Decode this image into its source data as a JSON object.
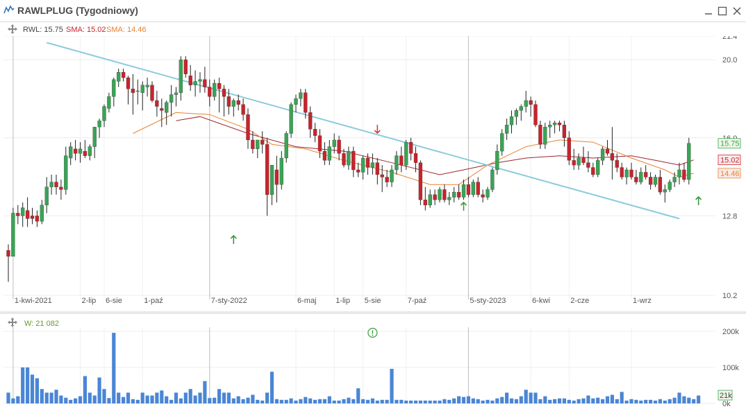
{
  "window": {
    "title": "RAWLPLUG (Tygodniowy)",
    "icons": [
      "chart-line-icon",
      "minimize-icon",
      "maximize-icon",
      "close-icon",
      "move-icon",
      "info-circle-icon",
      "arrow-up-icon",
      "arrow-down-icon"
    ]
  },
  "legend": {
    "rwl": "RWL: 15.75",
    "sma1": "SMA: 15.02",
    "sma2": "SMA: 14.46",
    "vol": "W: 21 082"
  },
  "colors": {
    "up": "#3aa455",
    "down": "#c8242c",
    "sma_long": "#9c2430",
    "sma_short": "#e8812e",
    "trendline": "#8ccbdc",
    "volume": "#4a86d4",
    "arrow_up": "#3a9a3a",
    "arrow_down": "#d04545"
  },
  "chart_data": [
    {
      "type": "candlestick",
      "title": "RAWLPLUG (Tygodniowy)",
      "y_ticks": [
        "21.4",
        "20.0",
        "16.0",
        "12.8",
        "10.2"
      ],
      "y_tick_values": [
        21.4,
        20.0,
        16.0,
        12.8,
        10.2
      ],
      "ylim": [
        10.2,
        21.4
      ],
      "y_scale": "log",
      "x_labels": [
        "1-kwi-2021",
        "2-lip",
        "6-sie",
        "1-paź",
        "7-sty-2022",
        "6-maj",
        "1-lip",
        "5-sie",
        "7-paź",
        "5-sty-2023",
        "6-kwi",
        "2-cze",
        "1-wrz"
      ],
      "x_label_index": [
        1,
        15,
        20,
        28,
        42,
        60,
        68,
        74,
        83,
        96,
        109,
        117,
        130
      ],
      "last_value_labels": [
        {
          "text": "15.75",
          "value": 15.75,
          "color": "#3aa455"
        },
        {
          "text": "15.02",
          "value": 15.02,
          "color": "#c8242c"
        },
        {
          "text": "14.46",
          "value": 14.46,
          "color": "#e8812e"
        }
      ],
      "candles": [
        [
          11.6,
          11.8,
          10.6,
          11.4
        ],
        [
          11.4,
          13.1,
          11.4,
          12.9
        ],
        [
          12.9,
          13.2,
          12.5,
          12.8
        ],
        [
          12.8,
          13.3,
          12.4,
          13.1
        ],
        [
          13.0,
          13.5,
          12.4,
          12.7
        ],
        [
          12.8,
          13.1,
          12.5,
          12.7
        ],
        [
          12.8,
          13.0,
          12.4,
          12.6
        ],
        [
          12.6,
          13.4,
          12.5,
          13.2
        ],
        [
          13.2,
          14.3,
          12.9,
          13.9
        ],
        [
          13.9,
          14.4,
          13.6,
          14.1
        ],
        [
          14.1,
          14.4,
          13.6,
          13.9
        ],
        [
          13.9,
          14.2,
          13.4,
          13.8
        ],
        [
          13.8,
          15.6,
          13.6,
          15.2
        ],
        [
          15.1,
          15.8,
          14.8,
          15.6
        ],
        [
          15.5,
          15.9,
          15.0,
          15.3
        ],
        [
          15.3,
          15.8,
          14.9,
          15.5
        ],
        [
          15.4,
          15.9,
          15.1,
          15.2
        ],
        [
          15.2,
          15.7,
          15.0,
          15.6
        ],
        [
          15.6,
          16.5,
          15.1,
          16.5
        ],
        [
          16.5,
          16.9,
          16.0,
          16.8
        ],
        [
          16.8,
          17.6,
          16.5,
          17.5
        ],
        [
          17.4,
          18.2,
          17.2,
          18.0
        ],
        [
          18.0,
          19.0,
          17.5,
          18.9
        ],
        [
          18.8,
          19.5,
          18.5,
          19.3
        ],
        [
          19.3,
          19.5,
          18.8,
          19.0
        ],
        [
          19.0,
          19.1,
          17.6,
          18.4
        ],
        [
          18.4,
          19.2,
          17.1,
          18.2
        ],
        [
          18.3,
          18.9,
          17.6,
          18.3
        ],
        [
          18.2,
          18.8,
          17.3,
          18.6
        ],
        [
          18.5,
          19.0,
          18.0,
          18.6
        ],
        [
          18.6,
          18.8,
          17.7,
          17.8
        ],
        [
          17.8,
          18.3,
          17.0,
          17.5
        ],
        [
          17.4,
          17.9,
          16.5,
          17.3
        ],
        [
          17.2,
          17.8,
          16.6,
          17.7
        ],
        [
          17.7,
          18.6,
          17.0,
          18.1
        ],
        [
          18.1,
          18.5,
          17.5,
          18.2
        ],
        [
          18.2,
          20.2,
          17.8,
          20.0
        ],
        [
          20.0,
          20.2,
          19.0,
          19.2
        ],
        [
          19.1,
          19.7,
          18.3,
          18.6
        ],
        [
          18.6,
          19.4,
          18.0,
          18.8
        ],
        [
          18.8,
          19.3,
          18.2,
          18.9
        ],
        [
          18.9,
          19.6,
          18.2,
          18.5
        ],
        [
          18.5,
          18.9,
          17.5,
          18.0
        ],
        [
          18.0,
          18.9,
          17.8,
          18.7
        ],
        [
          18.7,
          19.0,
          17.2,
          18.4
        ],
        [
          18.4,
          18.6,
          17.0,
          18.0
        ],
        [
          18.0,
          18.4,
          17.1,
          17.5
        ],
        [
          17.5,
          17.9,
          17.0,
          17.8
        ],
        [
          17.8,
          18.1,
          17.3,
          17.6
        ],
        [
          17.6,
          17.9,
          16.8,
          17.1
        ],
        [
          17.1,
          17.4,
          15.5,
          15.9
        ],
        [
          15.9,
          16.3,
          15.3,
          15.5
        ],
        [
          15.5,
          15.9,
          15.1,
          15.9
        ],
        [
          15.9,
          16.3,
          15.3,
          15.7
        ],
        [
          15.7,
          16.0,
          12.8,
          13.6
        ],
        [
          13.6,
          14.8,
          13.2,
          14.8
        ],
        [
          14.6,
          15.2,
          13.3,
          14.0
        ],
        [
          14.0,
          15.4,
          13.8,
          15.1
        ],
        [
          15.1,
          16.3,
          14.9,
          16.2
        ],
        [
          16.2,
          17.7,
          16.0,
          17.6
        ],
        [
          17.6,
          18.1,
          17.2,
          17.9
        ],
        [
          17.9,
          18.4,
          17.5,
          18.2
        ],
        [
          18.2,
          18.4,
          16.9,
          17.2
        ],
        [
          17.2,
          17.5,
          16.0,
          16.4
        ],
        [
          16.4,
          16.7,
          15.8,
          16.1
        ],
        [
          16.1,
          16.4,
          15.1,
          15.4
        ],
        [
          15.4,
          15.8,
          14.8,
          15.0
        ],
        [
          15.0,
          15.9,
          14.8,
          15.6
        ],
        [
          15.6,
          16.2,
          15.3,
          15.9
        ],
        [
          15.9,
          16.1,
          15.0,
          15.3
        ],
        [
          15.3,
          15.5,
          14.7,
          14.8
        ],
        [
          14.8,
          15.6,
          14.6,
          15.4
        ],
        [
          15.4,
          15.6,
          14.3,
          14.6
        ],
        [
          14.6,
          14.9,
          14.3,
          14.5
        ],
        [
          14.5,
          15.2,
          14.2,
          15.1
        ],
        [
          15.1,
          15.3,
          14.4,
          14.7
        ],
        [
          14.7,
          15.3,
          14.4,
          14.9
        ],
        [
          14.9,
          15.1,
          14.0,
          14.4
        ],
        [
          14.4,
          14.8,
          13.7,
          14.3
        ],
        [
          14.3,
          14.6,
          13.9,
          14.1
        ],
        [
          14.1,
          14.8,
          13.9,
          14.6
        ],
        [
          14.6,
          15.4,
          14.4,
          15.2
        ],
        [
          15.2,
          15.6,
          14.5,
          14.8
        ],
        [
          14.8,
          15.9,
          14.6,
          15.8
        ],
        [
          15.8,
          16.0,
          15.0,
          15.3
        ],
        [
          15.3,
          15.6,
          14.5,
          14.9
        ],
        [
          14.9,
          15.0,
          13.2,
          13.4
        ],
        [
          13.4,
          13.9,
          13.0,
          13.2
        ],
        [
          13.2,
          13.8,
          13.1,
          13.6
        ],
        [
          13.6,
          13.8,
          13.2,
          13.4
        ],
        [
          13.4,
          13.9,
          13.3,
          13.8
        ],
        [
          13.8,
          14.0,
          13.3,
          13.4
        ],
        [
          13.4,
          13.7,
          13.2,
          13.5
        ],
        [
          13.5,
          13.9,
          13.3,
          13.7
        ],
        [
          13.7,
          14.0,
          13.4,
          13.5
        ],
        [
          13.5,
          14.2,
          13.4,
          14.0
        ],
        [
          14.0,
          14.3,
          13.5,
          13.6
        ],
        [
          13.6,
          14.2,
          13.5,
          14.1
        ],
        [
          14.1,
          14.3,
          13.5,
          13.6
        ],
        [
          13.6,
          13.8,
          13.3,
          13.5
        ],
        [
          13.5,
          13.9,
          13.4,
          13.8
        ],
        [
          13.8,
          14.7,
          13.7,
          14.6
        ],
        [
          14.6,
          15.7,
          14.4,
          15.4
        ],
        [
          15.4,
          16.4,
          15.2,
          16.2
        ],
        [
          16.2,
          16.9,
          15.9,
          16.6
        ],
        [
          16.6,
          17.3,
          16.2,
          17.0
        ],
        [
          17.0,
          17.4,
          16.6,
          17.3
        ],
        [
          17.3,
          17.6,
          16.8,
          17.5
        ],
        [
          17.5,
          18.3,
          17.2,
          17.8
        ],
        [
          17.8,
          18.0,
          17.0,
          17.6
        ],
        [
          17.6,
          17.8,
          16.5,
          16.6
        ],
        [
          16.6,
          16.8,
          15.5,
          15.7
        ],
        [
          15.7,
          16.7,
          15.5,
          16.5
        ],
        [
          16.5,
          16.8,
          16.0,
          16.6
        ],
        [
          16.6,
          16.8,
          16.2,
          16.7
        ],
        [
          16.7,
          16.8,
          16.3,
          16.6
        ],
        [
          16.6,
          16.8,
          15.6,
          16.0
        ],
        [
          16.0,
          16.3,
          14.8,
          15.0
        ],
        [
          15.0,
          15.5,
          14.6,
          14.8
        ],
        [
          14.8,
          15.3,
          14.6,
          15.1
        ],
        [
          15.1,
          15.6,
          14.8,
          14.9
        ],
        [
          14.9,
          15.4,
          14.5,
          14.7
        ],
        [
          14.7,
          14.9,
          14.3,
          14.4
        ],
        [
          14.4,
          15.1,
          14.3,
          15.0
        ],
        [
          15.0,
          15.6,
          14.8,
          15.5
        ],
        [
          15.5,
          15.9,
          15.2,
          15.3
        ],
        [
          15.3,
          16.5,
          14.2,
          15.0
        ],
        [
          15.0,
          15.3,
          14.5,
          14.7
        ],
        [
          14.7,
          14.9,
          14.2,
          14.3
        ],
        [
          14.3,
          14.7,
          14.0,
          14.6
        ],
        [
          14.6,
          14.9,
          14.2,
          14.3
        ],
        [
          14.3,
          14.6,
          14.0,
          14.1
        ],
        [
          14.1,
          14.7,
          14.0,
          14.5
        ],
        [
          14.5,
          14.8,
          14.2,
          14.3
        ],
        [
          14.3,
          14.5,
          13.8,
          14.0
        ],
        [
          14.0,
          14.4,
          13.9,
          14.3
        ],
        [
          14.3,
          14.6,
          13.6,
          13.7
        ],
        [
          13.7,
          14.0,
          13.3,
          13.8
        ],
        [
          13.8,
          14.2,
          13.7,
          14.1
        ],
        [
          14.1,
          14.5,
          13.9,
          14.3
        ],
        [
          14.3,
          14.9,
          14.0,
          14.6
        ],
        [
          14.6,
          14.9,
          14.1,
          14.2
        ],
        [
          14.2,
          16.0,
          14.0,
          15.75
        ]
      ],
      "sma_long": [
        [
          35,
          16.8
        ],
        [
          40,
          17.0
        ],
        [
          50,
          16.2
        ],
        [
          60,
          15.6
        ],
        [
          70,
          15.4
        ],
        [
          80,
          14.9
        ],
        [
          90,
          14.4
        ],
        [
          95,
          14.6
        ],
        [
          102,
          14.9
        ],
        [
          108,
          15.1
        ],
        [
          115,
          15.2
        ],
        [
          122,
          15.1
        ],
        [
          130,
          15.2
        ],
        [
          135,
          15.0
        ],
        [
          140,
          14.8
        ],
        [
          143,
          15.02
        ]
      ],
      "sma_short": [
        [
          26,
          16.2
        ],
        [
          35,
          17.2
        ],
        [
          42,
          17.1
        ],
        [
          50,
          16.4
        ],
        [
          55,
          15.7
        ],
        [
          62,
          15.5
        ],
        [
          70,
          15.0
        ],
        [
          80,
          14.5
        ],
        [
          88,
          14.0
        ],
        [
          94,
          14.0
        ],
        [
          100,
          14.8
        ],
        [
          108,
          15.6
        ],
        [
          115,
          15.9
        ],
        [
          122,
          15.8
        ],
        [
          130,
          15.1
        ],
        [
          137,
          14.6
        ],
        [
          140,
          14.3
        ],
        [
          143,
          14.46
        ]
      ],
      "trendline": [
        [
          8,
          21.0
        ],
        [
          140,
          12.7
        ]
      ],
      "arrows": [
        {
          "kind": "up",
          "index": 47
        },
        {
          "kind": "down",
          "index": 77
        },
        {
          "kind": "up",
          "index": 95
        },
        {
          "kind": "up",
          "index": 144
        }
      ]
    },
    {
      "type": "bar",
      "title": "W: 21 082",
      "y_ticks": [
        "200k",
        "100k",
        "0k"
      ],
      "y_tick_values": [
        200000,
        100000,
        0
      ],
      "last_value_label": "21k",
      "values": [
        30000,
        14000,
        20000,
        100000,
        100000,
        80000,
        70000,
        40000,
        30000,
        30000,
        38000,
        22000,
        16000,
        10000,
        14000,
        20000,
        76000,
        30000,
        22000,
        72000,
        40000,
        15000,
        196000,
        30000,
        18000,
        30000,
        12000,
        10000,
        30000,
        22000,
        22000,
        30000,
        36000,
        20000,
        10000,
        30000,
        14000,
        30000,
        40000,
        22000,
        30000,
        62000,
        15000,
        16000,
        40000,
        30000,
        30000,
        14000,
        20000,
        12000,
        16000,
        24000,
        10000,
        8000,
        30000,
        88000,
        12000,
        10000,
        10000,
        14000,
        8000,
        12000,
        18000,
        14000,
        10000,
        12000,
        12000,
        20000,
        8000,
        8000,
        12000,
        16000,
        12000,
        42000,
        12000,
        10000,
        14000,
        8000,
        10000,
        10000,
        96000,
        10000,
        10000,
        8000,
        8000,
        8000,
        8000,
        8000,
        8000,
        8000,
        8000,
        12000,
        10000,
        14000,
        20000,
        18000,
        20000,
        14000,
        12000,
        8000,
        10000,
        8000,
        14000,
        18000,
        30000,
        14000,
        12000,
        20000,
        38000,
        30000,
        30000,
        12000,
        20000,
        10000,
        12000,
        14000,
        14000,
        10000,
        8000,
        12000,
        14000,
        22000,
        14000,
        16000,
        12000,
        20000,
        24000,
        12000,
        32000,
        8000,
        12000,
        10000,
        8000,
        10000,
        10000,
        8000,
        12000,
        8000,
        12000,
        16000,
        30000,
        20000,
        16000,
        12000,
        22000
      ]
    }
  ]
}
